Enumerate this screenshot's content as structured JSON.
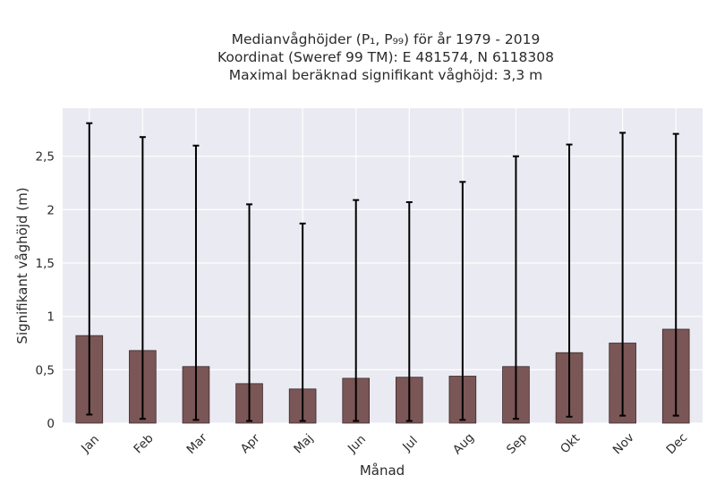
{
  "chart_data": {
    "type": "bar",
    "title_lines": [
      "Medianvåghöjder (P₁, P₉₉) för år 1979 - 2019",
      "Koordinat (Sweref 99 TM): E 481574, N 6118308",
      "Maximal beräknad signifikant våghöjd: 3,3 m"
    ],
    "xlabel": "Månad",
    "ylabel": "Signifikant våghöjd (m)",
    "categories": [
      "Jan",
      "Feb",
      "Mar",
      "Apr",
      "Maj",
      "Jun",
      "Jul",
      "Aug",
      "Sep",
      "Okt",
      "Nov",
      "Dec"
    ],
    "values": [
      0.82,
      0.68,
      0.53,
      0.37,
      0.32,
      0.42,
      0.43,
      0.44,
      0.53,
      0.66,
      0.75,
      0.88
    ],
    "p1": [
      0.08,
      0.04,
      0.03,
      0.02,
      0.02,
      0.02,
      0.02,
      0.03,
      0.04,
      0.06,
      0.07,
      0.07
    ],
    "p99": [
      2.81,
      2.68,
      2.6,
      2.05,
      1.87,
      2.09,
      2.07,
      2.26,
      2.5,
      2.61,
      2.72,
      2.71
    ],
    "yticks": [
      0,
      0.5,
      1,
      1.5,
      2,
      2.5
    ],
    "ytick_labels": [
      "0",
      "0,5",
      "1",
      "1,5",
      "2",
      "2,5"
    ],
    "ylim": [
      0,
      2.95
    ],
    "grid": true,
    "bar_color": "#7b5656",
    "errorbar_color": "#000000",
    "background_color": "#eaeaf2"
  }
}
